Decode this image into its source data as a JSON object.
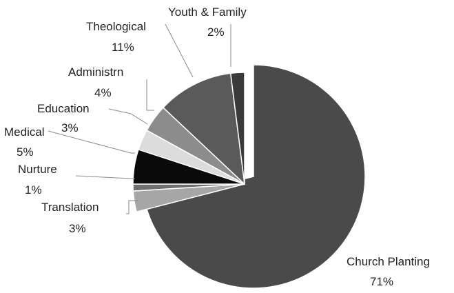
{
  "chart_data": {
    "type": "pie",
    "title": "",
    "categories": [
      "Church Planting",
      "Translation",
      "Nurture",
      "Medical",
      "Education",
      "Administrn",
      "Theological",
      "Youth & Family"
    ],
    "values": [
      71,
      3,
      1,
      5,
      3,
      4,
      11,
      2
    ],
    "value_labels": [
      "71%",
      "3%",
      "1%",
      "5%",
      "3%",
      "4%",
      "11%",
      "2%"
    ],
    "exploded": "Church Planting",
    "colors": [
      "#4a4a4a",
      "#a6a6a6",
      "#6e6e6e",
      "#0a0a0a",
      "#dcdcdc",
      "#8c8c8c",
      "#5a5a5a",
      "#3a3a3a"
    ],
    "legend": "none"
  }
}
